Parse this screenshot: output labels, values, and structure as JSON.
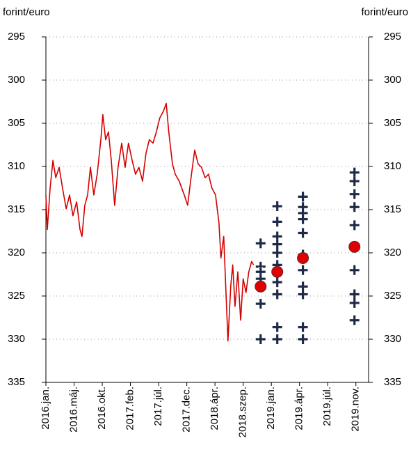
{
  "chart_data": {
    "type": "line",
    "y_label_left": "forint/euro",
    "y_label_right": "forint/euro",
    "ylim": [
      295,
      335
    ],
    "yticks": [
      295,
      300,
      305,
      310,
      315,
      320,
      325,
      330,
      335
    ],
    "y2lim": [
      295,
      335
    ],
    "y2ticks": [
      295,
      300,
      305,
      310,
      315,
      320,
      325,
      330,
      335
    ],
    "y_inverted": true,
    "grid": true,
    "xlim": [
      0,
      11.45
    ],
    "xticks": [
      {
        "value": 0,
        "label": "2016.jan."
      },
      {
        "value": 1,
        "label": "2016.máj."
      },
      {
        "value": 2,
        "label": "2016.okt."
      },
      {
        "value": 3,
        "label": "2017.feb."
      },
      {
        "value": 4,
        "label": "2017.júl."
      },
      {
        "value": 5,
        "label": "2017.dec."
      },
      {
        "value": 6,
        "label": "2018.ápr."
      },
      {
        "value": 7,
        "label": "2018.szep."
      },
      {
        "value": 8,
        "label": "2019.jan."
      },
      {
        "value": 9,
        "label": "2019.ápr."
      },
      {
        "value": 10,
        "label": "2019.júl."
      },
      {
        "value": 11,
        "label": "2019.nov."
      }
    ],
    "series": [
      {
        "type": "line",
        "color": "#d40000",
        "x": [
          0,
          0.05,
          0.15,
          0.25,
          0.35,
          0.47,
          0.59,
          0.72,
          0.84,
          0.96,
          1.09,
          1.21,
          1.28,
          1.38,
          1.48,
          1.58,
          1.7,
          1.82,
          1.95,
          2.02,
          2.12,
          2.22,
          2.32,
          2.44,
          2.56,
          2.69,
          2.81,
          2.93,
          3.06,
          3.18,
          3.3,
          3.43,
          3.55,
          3.67,
          3.8,
          3.92,
          4.04,
          4.17,
          4.27,
          4.36,
          4.49,
          4.59,
          4.73,
          4.91,
          5.03,
          5.15,
          5.28,
          5.4,
          5.52,
          5.65,
          5.77,
          5.89,
          6.02,
          6.14,
          6.21,
          6.31,
          6.39,
          6.46,
          6.56,
          6.63,
          6.71,
          6.81,
          6.91,
          7.0,
          7.1,
          7.2,
          7.3,
          7.37
        ],
        "values": [
          313.3,
          317.3,
          312.5,
          309.3,
          311.3,
          310.1,
          312.5,
          314.9,
          313.3,
          315.7,
          314.1,
          317.3,
          318.1,
          314.5,
          313.3,
          310.1,
          313.3,
          310.9,
          306.9,
          304.0,
          306.9,
          306.0,
          309.3,
          314.5,
          310.1,
          307.3,
          310.1,
          307.3,
          309.3,
          310.9,
          310.1,
          311.7,
          308.5,
          306.9,
          307.3,
          306.0,
          304.4,
          303.6,
          302.7,
          306.0,
          309.7,
          310.9,
          311.7,
          313.3,
          314.5,
          311.3,
          308.1,
          309.7,
          310.1,
          311.3,
          310.9,
          312.5,
          313.3,
          316.5,
          320.6,
          318.1,
          324.6,
          330.2,
          323.8,
          321.4,
          326.2,
          322.2,
          327.8,
          323.0,
          324.6,
          322.2,
          321.0,
          321.4
        ]
      },
      {
        "type": "scatter",
        "marker": "cross",
        "color": "#1f2a48",
        "x": [
          7.62,
          7.62,
          7.62,
          7.62,
          7.62,
          7.62,
          8.21,
          8.21,
          8.21,
          8.21,
          8.21,
          8.21,
          8.21,
          8.21,
          8.21,
          8.21,
          9.12,
          9.12,
          9.12,
          9.12,
          9.12,
          9.12,
          9.12,
          9.12,
          9.12,
          9.12,
          9.12,
          10.95,
          10.95,
          10.95,
          10.95,
          10.95,
          10.95,
          10.95,
          10.95,
          10.95
        ],
        "values": [
          318.9,
          321.6,
          322.2,
          323.0,
          325.9,
          330.0,
          314.6,
          316.4,
          318.1,
          319.0,
          320.0,
          321.4,
          323.4,
          324.8,
          328.6,
          330.0,
          313.5,
          314.7,
          315.4,
          316.1,
          317.7,
          320.2,
          322.0,
          323.9,
          324.8,
          328.6,
          330.0,
          310.7,
          311.7,
          313.2,
          314.7,
          316.8,
          322.0,
          324.8,
          325.8,
          327.8
        ]
      },
      {
        "type": "scatter",
        "marker": "circle",
        "color": "#e00000",
        "x": [
          7.62,
          8.21,
          9.12,
          10.95
        ],
        "values": [
          323.9,
          322.2,
          320.6,
          319.3
        ]
      }
    ]
  }
}
